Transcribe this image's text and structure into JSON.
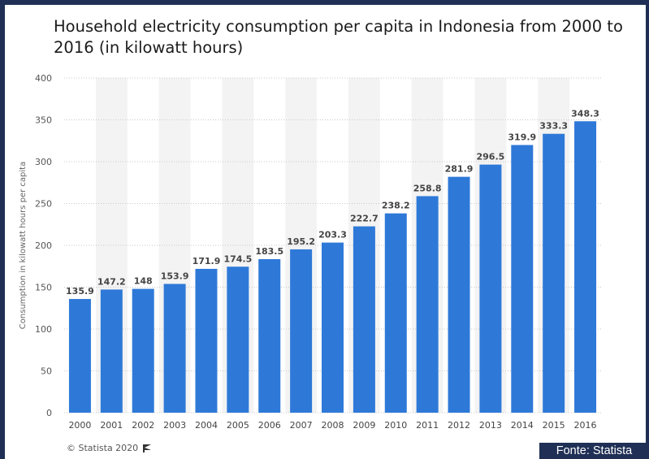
{
  "header": {
    "title": "Household electricity consumption per capita in Indonesia from 2000 to 2016 (in kilowatt hours)"
  },
  "footer": {
    "copyright": "© Statista 2020",
    "source_badge": "Fonte: Statista"
  },
  "colors": {
    "bar": "#2e79d8",
    "frame": "#1f2f55",
    "band": "#f3f3f3",
    "grid": "#c8c8c8"
  },
  "chart_data": {
    "type": "bar",
    "title": "Household electricity consumption per capita in Indonesia from 2000 to 2016 (in kilowatt hours)",
    "xlabel": "",
    "ylabel": "Consumption in kilowatt hours per capita",
    "ylim": [
      0,
      400
    ],
    "yticks": [
      0,
      50,
      100,
      150,
      200,
      250,
      300,
      350,
      400
    ],
    "grid": true,
    "categories": [
      "2000",
      "2001",
      "2002",
      "2003",
      "2004",
      "2005",
      "2006",
      "2007",
      "2008",
      "2009",
      "2010",
      "2011",
      "2012",
      "2013",
      "2014",
      "2015",
      "2016"
    ],
    "values": [
      135.9,
      147.2,
      148,
      153.9,
      171.9,
      174.5,
      183.5,
      195.2,
      203.3,
      222.7,
      238.2,
      258.8,
      281.9,
      296.5,
      319.9,
      333.3,
      348.3
    ],
    "value_labels": [
      "135.9",
      "147.2",
      "148",
      "153.9",
      "171.9",
      "174.5",
      "183.5",
      "195.2",
      "203.3",
      "222.7",
      "238.2",
      "258.8",
      "281.9",
      "296.5",
      "319.9",
      "333.3",
      "348.3"
    ]
  }
}
